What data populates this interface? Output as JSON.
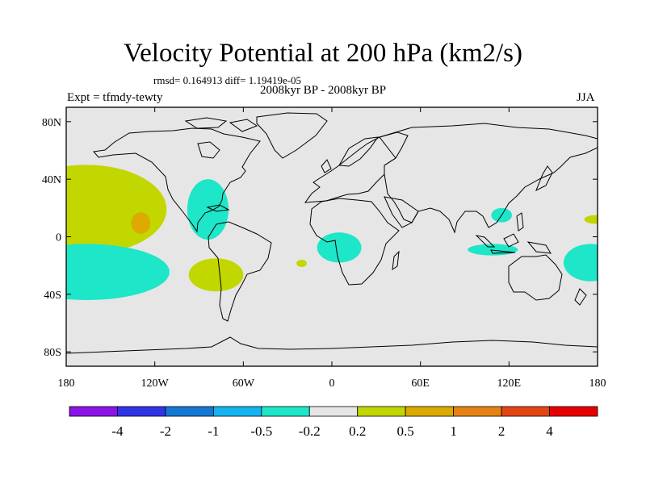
{
  "title": "Velocity Potential at 200 hPa (km2/s)",
  "stats": "rmsd= 0.164913 diff= 1.19419e-05",
  "period": "2008kyr BP - 2008kyr BP",
  "experiment": "Expt = tfmdy-tewty",
  "season": "JJA",
  "map": {
    "lat_ticks": [
      {
        "lat": 80,
        "label": "80N"
      },
      {
        "lat": 40,
        "label": "40N"
      },
      {
        "lat": 0,
        "label": "0"
      },
      {
        "lat": -40,
        "label": "40S"
      },
      {
        "lat": -80,
        "label": "80S"
      }
    ],
    "lon_ticks": [
      {
        "lon": -180,
        "label": "180"
      },
      {
        "lon": -120,
        "label": "120W"
      },
      {
        "lon": -60,
        "label": "60W"
      },
      {
        "lon": 0,
        "label": "0"
      },
      {
        "lon": 60,
        "label": "60E"
      },
      {
        "lon": 120,
        "label": "120E"
      },
      {
        "lon": 180,
        "label": "180"
      }
    ],
    "background_color": "#e6e6e6",
    "anomaly_regions": [
      {
        "name": "central-pacific-positive",
        "level": "0.2 to 0.5",
        "color": "#c2d600",
        "lon": [
          -180,
          -112
        ],
        "lat": [
          -12,
          50
        ]
      },
      {
        "name": "central-pacific-core",
        "level": "0.5 to 1",
        "color": "#dcaa00",
        "lon": [
          -136,
          -123
        ],
        "lat": [
          2,
          17
        ]
      },
      {
        "name": "south-pacific-negative",
        "level": "-0.5 to -0.2",
        "color": "#1ee6c8",
        "lon": [
          -180,
          -110
        ],
        "lat": [
          -44,
          -5
        ]
      },
      {
        "name": "caribbean-negative",
        "level": "-0.5 to -0.2",
        "color": "#1ee6c8",
        "lon": [
          -98,
          -70
        ],
        "lat": [
          -2,
          40
        ]
      },
      {
        "name": "south-america-positive",
        "level": "0.2 to 0.5",
        "color": "#c2d600",
        "lon": [
          -97,
          -60
        ],
        "lat": [
          -38,
          -15
        ]
      },
      {
        "name": "atlantic-positive",
        "level": "0.2 to 0.5",
        "color": "#c2d600",
        "lon": [
          -24,
          -17
        ],
        "lat": [
          -21,
          -16
        ]
      },
      {
        "name": "gulf-of-guinea-negative",
        "level": "-0.5 to -0.2",
        "color": "#1ee6c8",
        "lon": [
          -10,
          20
        ],
        "lat": [
          -18,
          3
        ]
      },
      {
        "name": "east-asia-negative",
        "level": "-0.5 to -0.2",
        "color": "#1ee6c8",
        "lon": [
          108,
          122
        ],
        "lat": [
          10,
          20
        ]
      },
      {
        "name": "indonesia-negative",
        "level": "-0.5 to -0.2",
        "color": "#1ee6c8",
        "lon": [
          92,
          126
        ],
        "lat": [
          -13,
          -5
        ]
      },
      {
        "name": "dateline-negative",
        "level": "-0.5 to -0.2",
        "color": "#1ee6c8",
        "lon": [
          157,
          180
        ],
        "lat": [
          -31,
          -5
        ]
      },
      {
        "name": "east-edge-positive",
        "level": "0.2 to 0.5",
        "color": "#c2d600",
        "lon": [
          171,
          180
        ],
        "lat": [
          9,
          15
        ]
      }
    ]
  },
  "colorbar": {
    "colors": [
      "#8c14e6",
      "#3232e6",
      "#1478d2",
      "#14b4f0",
      "#1ee6c8",
      "#e6e6e6",
      "#c2d600",
      "#dcaa00",
      "#e68214",
      "#e14614",
      "#e60000"
    ],
    "labels": [
      "-4",
      "-2",
      "-1",
      "-0.5",
      "-0.2",
      "0.2",
      "0.5",
      "1",
      "2",
      "4"
    ]
  }
}
